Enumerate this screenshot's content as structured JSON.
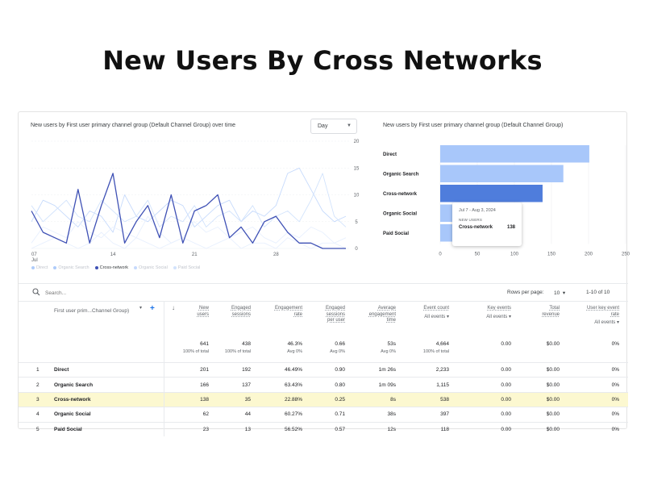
{
  "page_title": "New Users By Cross Networks",
  "line_chart": {
    "title": "New users by First user primary channel group (Default Channel Group) over time",
    "granularity": "Day",
    "y_ticks": [
      "20",
      "15",
      "10",
      "5",
      "0"
    ],
    "x_ticks": [
      {
        "label": "07",
        "sub": "Jul"
      },
      {
        "label": "14",
        "sub": ""
      },
      {
        "label": "21",
        "sub": ""
      },
      {
        "label": "28",
        "sub": ""
      }
    ],
    "legend": [
      {
        "label": "Direct",
        "color": "#aecbfa",
        "active": false
      },
      {
        "label": "Organic Search",
        "color": "#aecbfa",
        "active": false
      },
      {
        "label": "Cross-network",
        "color": "#3f51b5",
        "active": true
      },
      {
        "label": "Organic Social",
        "color": "#c6dafc",
        "active": false
      },
      {
        "label": "Paid Social",
        "color": "#d2e3fc",
        "active": false
      }
    ]
  },
  "chart_data": [
    {
      "type": "line",
      "title": "New users by First user primary channel group (Default Channel Group) over time",
      "x": [
        "Jul 7",
        "Jul 8",
        "Jul 9",
        "Jul 10",
        "Jul 11",
        "Jul 12",
        "Jul 13",
        "Jul 14",
        "Jul 15",
        "Jul 16",
        "Jul 17",
        "Jul 18",
        "Jul 19",
        "Jul 20",
        "Jul 21",
        "Jul 22",
        "Jul 23",
        "Jul 24",
        "Jul 25",
        "Jul 26",
        "Jul 27",
        "Jul 28",
        "Jul 29",
        "Jul 30",
        "Jul 31",
        "Aug 1",
        "Aug 2",
        "Aug 3"
      ],
      "ylim": [
        0,
        20
      ],
      "series": [
        {
          "name": "Direct",
          "color": "#c6dafc",
          "values": [
            5,
            9,
            8,
            6,
            4,
            7,
            6,
            3,
            10,
            6,
            5,
            7,
            9,
            8,
            4,
            6,
            8,
            9,
            5,
            7,
            6,
            8,
            14,
            15,
            11,
            7,
            5,
            6
          ]
        },
        {
          "name": "Organic Search",
          "color": "#d2e3fc",
          "values": [
            8,
            5,
            7,
            9,
            6,
            5,
            9,
            7,
            5,
            6,
            9,
            4,
            6,
            5,
            8,
            4,
            6,
            7,
            5,
            8,
            4,
            6,
            7,
            5,
            9,
            14,
            6,
            4
          ]
        },
        {
          "name": "Cross-network",
          "color": "#3f51b5",
          "values": [
            7,
            3,
            2,
            1,
            11,
            1,
            8,
            14,
            1,
            5,
            8,
            2,
            10,
            1,
            7,
            8,
            10,
            2,
            4,
            1,
            5,
            6,
            3,
            1,
            1,
            0,
            0,
            0
          ]
        },
        {
          "name": "Organic Social",
          "color": "#e8f0fe",
          "values": [
            1,
            4,
            3,
            2,
            5,
            3,
            2,
            4,
            3,
            2,
            6,
            3,
            1,
            2,
            5,
            3,
            4,
            2,
            3,
            4,
            2,
            1,
            3,
            2,
            4,
            3,
            1,
            2
          ]
        },
        {
          "name": "Paid Social",
          "color": "#e8f0fe",
          "values": [
            0,
            1,
            2,
            1,
            0,
            1,
            3,
            1,
            0,
            2,
            1,
            0,
            1,
            2,
            1,
            0,
            1,
            2,
            0,
            1,
            1,
            0,
            2,
            1,
            0,
            1,
            1,
            0
          ]
        }
      ]
    },
    {
      "type": "bar",
      "title": "New users by First user primary channel group (Default Channel Group)",
      "categories": [
        "Direct",
        "Organic Search",
        "Cross-network",
        "Organic Social",
        "Paid Social"
      ],
      "values": [
        201,
        166,
        138,
        62,
        23
      ],
      "xlim": [
        0,
        250
      ],
      "x_ticks": [
        "0",
        "50",
        "100",
        "150",
        "200",
        "250"
      ],
      "highlight": "Cross-network"
    }
  ],
  "bar_chart": {
    "title": "New users by First user primary channel group (Default Channel Group)",
    "tooltip": {
      "date_range": "Jul 7 - Aug 3, 2024",
      "metric": "NEW USERS",
      "label": "Cross-network",
      "value": "138"
    }
  },
  "table": {
    "search_placeholder": "Search...",
    "rows_per_page_label": "Rows per page:",
    "rows_per_page_value": "10",
    "pagination": "1-10 of 10",
    "dimension_header": "First user prim...Channel Group)",
    "columns": [
      {
        "label_l1": "New",
        "label_l2": "users",
        "sub": "",
        "total": "641",
        "total_pct": "100% of total"
      },
      {
        "label_l1": "Engaged",
        "label_l2": "sessions",
        "sub": "",
        "total": "438",
        "total_pct": "100% of total"
      },
      {
        "label_l1": "Engagement",
        "label_l2": "rate",
        "sub": "",
        "total": "46.3%",
        "total_pct": "Avg 0%"
      },
      {
        "label_l1": "Engaged",
        "label_l2": "sessions",
        "label_l3": "per user",
        "sub": "",
        "total": "0.66",
        "total_pct": "Avg 0%"
      },
      {
        "label_l1": "Average",
        "label_l2": "engagement",
        "label_l3": "time",
        "sub": "",
        "total": "53s",
        "total_pct": "Avg 0%"
      },
      {
        "label_l1": "Event count",
        "label_l2": "",
        "sub": "All events",
        "total": "4,664",
        "total_pct": "100% of total"
      },
      {
        "label_l1": "Key events",
        "label_l2": "",
        "sub": "All events",
        "total": "0.00",
        "total_pct": ""
      },
      {
        "label_l1": "Total",
        "label_l2": "revenue",
        "sub": "",
        "total": "$0.00",
        "total_pct": ""
      },
      {
        "label_l1": "User key event",
        "label_l2": "rate",
        "sub": "All events",
        "total": "0%",
        "total_pct": ""
      }
    ],
    "rows": [
      {
        "rank": "1",
        "name": "Direct",
        "cells": [
          "201",
          "192",
          "46.49%",
          "0.90",
          "1m 26s",
          "2,233",
          "0.00",
          "$0.00",
          "0%"
        ]
      },
      {
        "rank": "2",
        "name": "Organic Search",
        "cells": [
          "166",
          "137",
          "63.43%",
          "0.80",
          "1m 09s",
          "1,115",
          "0.00",
          "$0.00",
          "0%"
        ]
      },
      {
        "rank": "3",
        "name": "Cross-network",
        "cells": [
          "138",
          "35",
          "22.88%",
          "0.25",
          "8s",
          "538",
          "0.00",
          "$0.00",
          "0%"
        ]
      },
      {
        "rank": "4",
        "name": "Organic Social",
        "cells": [
          "62",
          "44",
          "60.27%",
          "0.71",
          "38s",
          "397",
          "0.00",
          "$0.00",
          "0%"
        ]
      },
      {
        "rank": "5",
        "name": "Paid Social",
        "cells": [
          "23",
          "13",
          "56.52%",
          "0.57",
          "12s",
          "118",
          "0.00",
          "$0.00",
          "0%"
        ]
      }
    ]
  }
}
